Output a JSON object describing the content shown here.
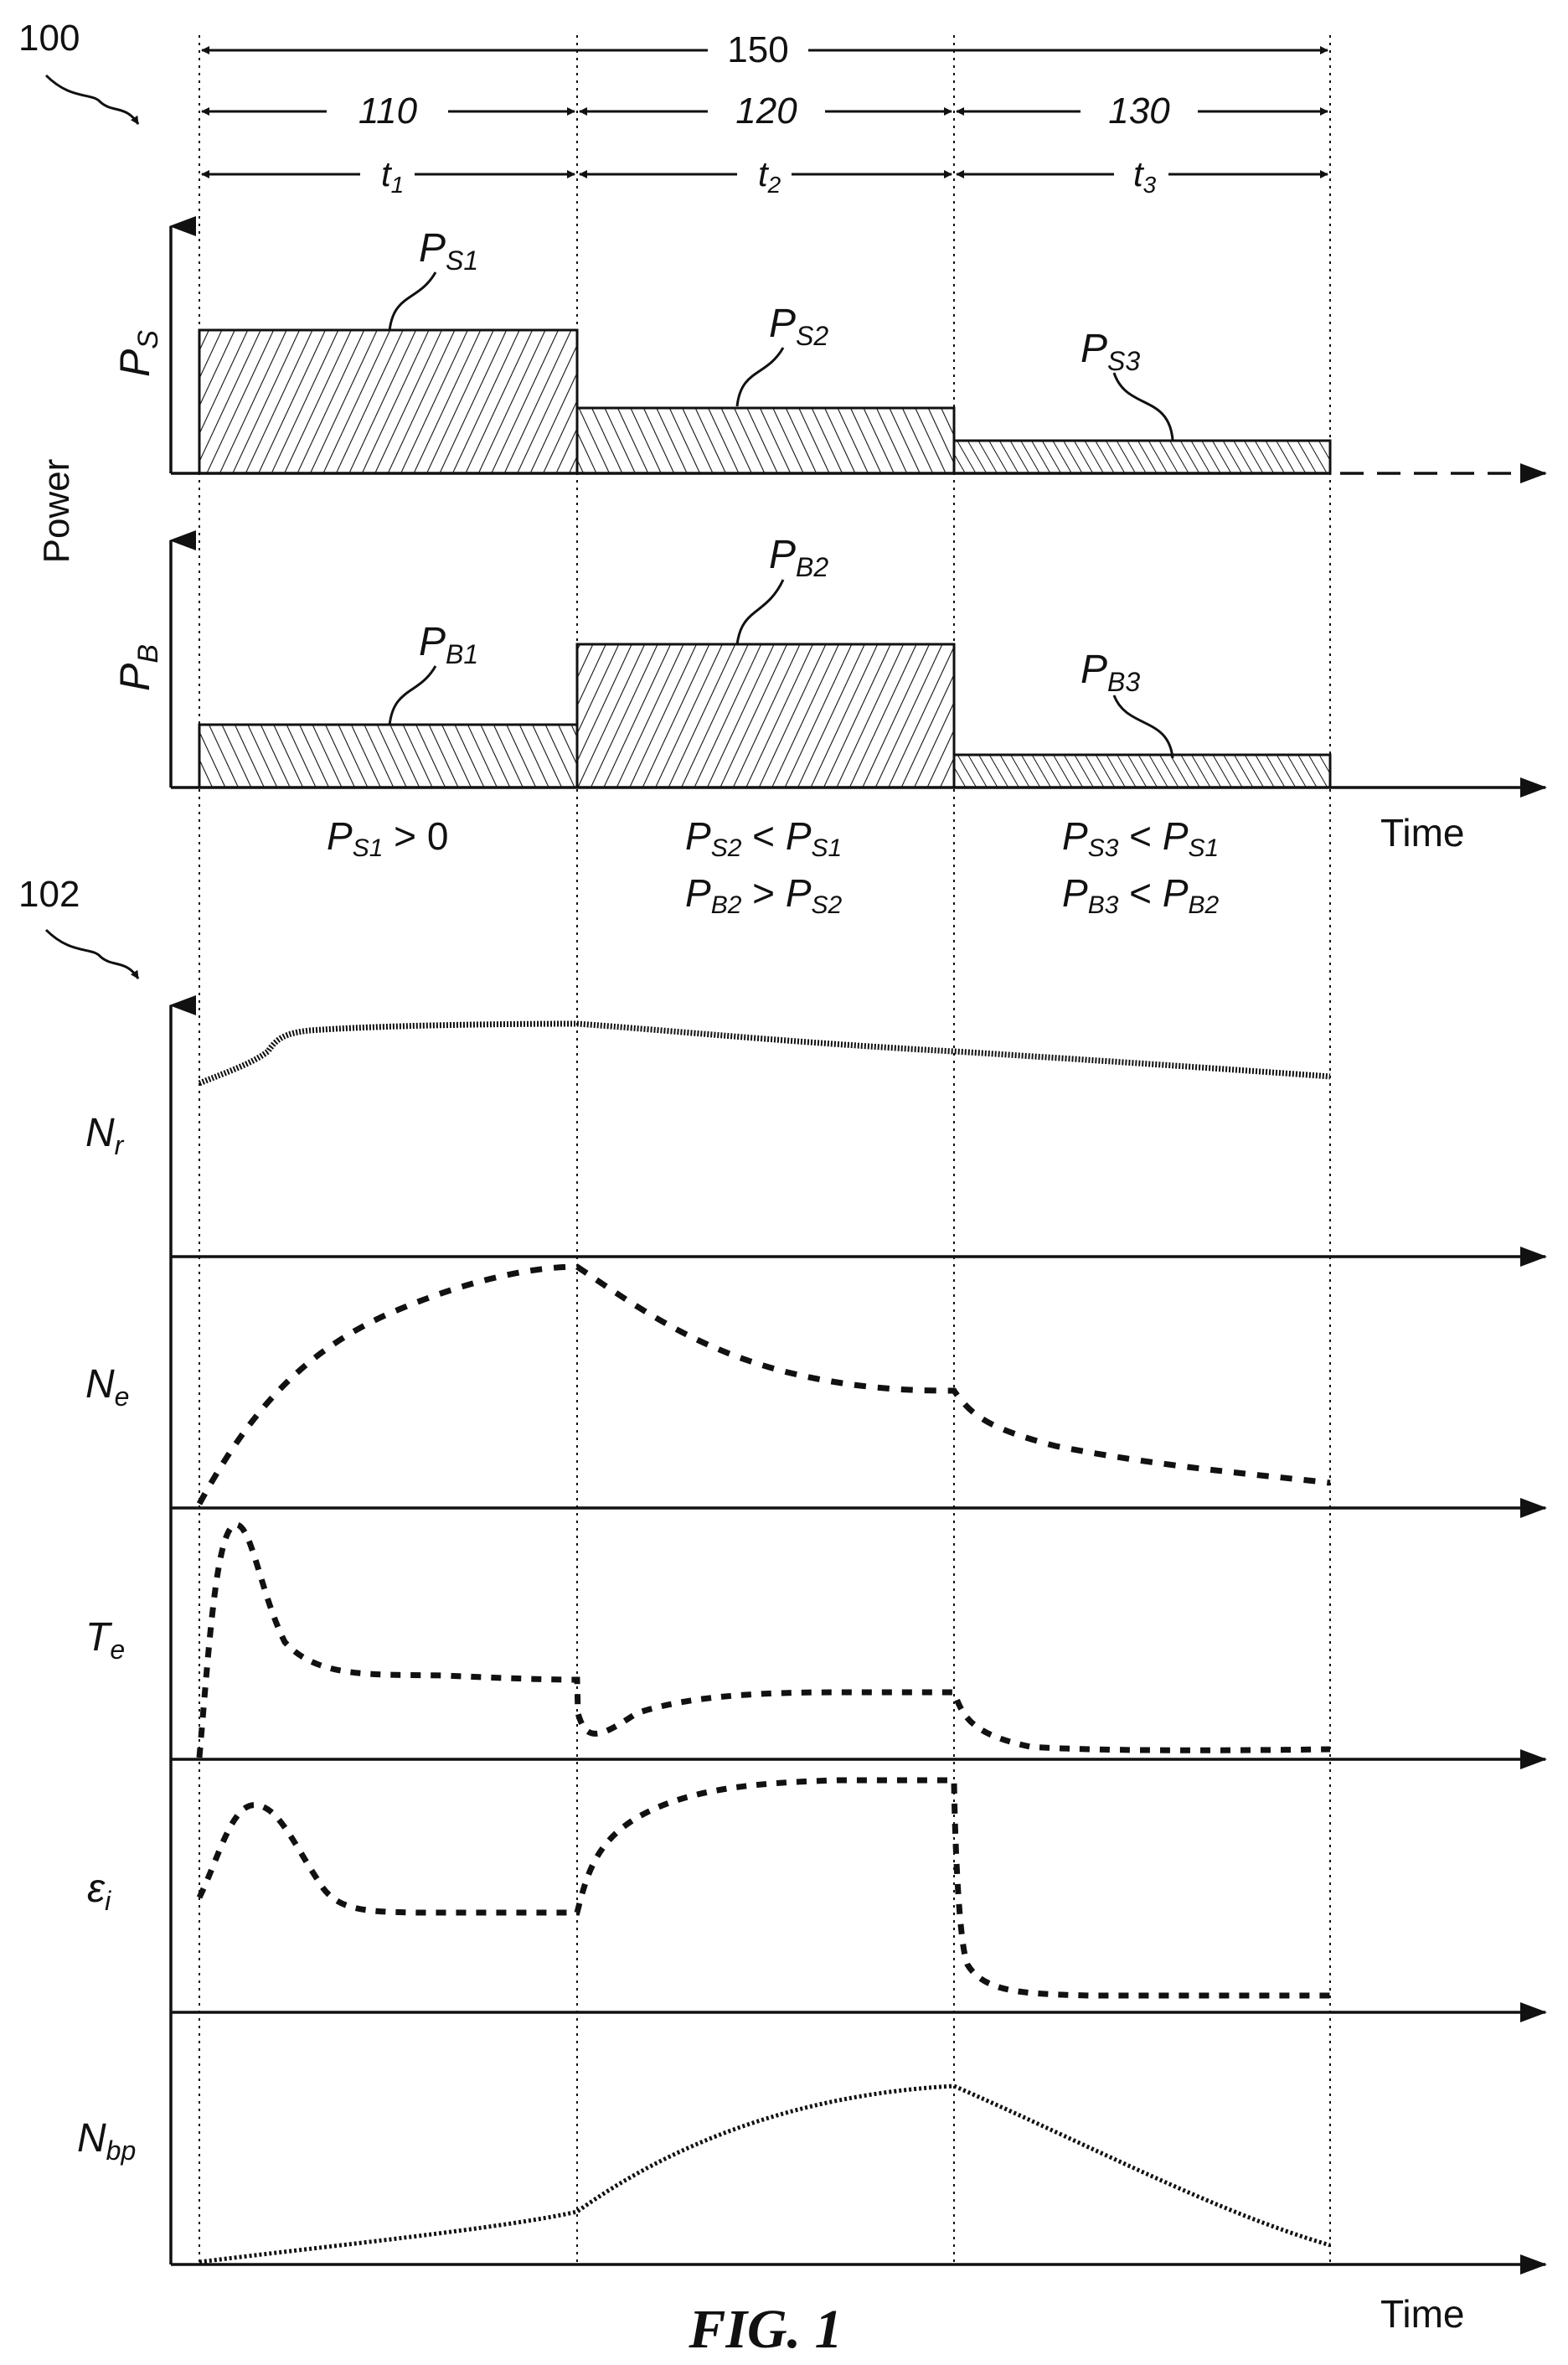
{
  "figure_label": "FIG. 1",
  "ref_top": "100",
  "ref_bottom": "102",
  "durations": {
    "total": "150",
    "seg1": "110",
    "seg2": "120",
    "seg3": "130",
    "t1": "t",
    "t1_sub": "1",
    "t2": "t",
    "t2_sub": "2",
    "t3": "t",
    "t3_sub": "3"
  },
  "power_axis_label": "Power",
  "time_label_top": "Time",
  "time_label_bottom": "Time",
  "ps_axis": {
    "main": "P",
    "sub": "S"
  },
  "pb_axis": {
    "main": "P",
    "sub": "B"
  },
  "ps_labels": [
    {
      "main": "P",
      "sub": "S1"
    },
    {
      "main": "P",
      "sub": "S2"
    },
    {
      "main": "P",
      "sub": "S3"
    }
  ],
  "pb_labels": [
    {
      "main": "P",
      "sub": "B1"
    },
    {
      "main": "P",
      "sub": "B2"
    },
    {
      "main": "P",
      "sub": "B3"
    }
  ],
  "ps_levels": [
    0.57,
    0.26,
    0.13
  ],
  "pb_levels": [
    0.25,
    0.57,
    0.13
  ],
  "conditions": {
    "c1": {
      "a_main": "P",
      "a_sub": "S1",
      "a_rest": " > 0"
    },
    "c2_line1": {
      "a_main": "P",
      "a_sub": "S2",
      "op": " < ",
      "b_main": "P",
      "b_sub": "S1"
    },
    "c2_line2": {
      "a_main": "P",
      "a_sub": "B2",
      "op": " > ",
      "b_main": "P",
      "b_sub": "S2"
    },
    "c3_line1": {
      "a_main": "P",
      "a_sub": "S3",
      "op": " < ",
      "b_main": "P",
      "b_sub": "S1"
    },
    "c3_line2": {
      "a_main": "P",
      "a_sub": "B3",
      "op": " < ",
      "b_main": "P",
      "b_sub": "B2"
    }
  },
  "traces": [
    {
      "main": "N",
      "sub": "r"
    },
    {
      "main": "N",
      "sub": "e"
    },
    {
      "main": "T",
      "sub": "e"
    },
    {
      "main": "ε",
      "sub": "i"
    },
    {
      "main": "N",
      "sub": "bp"
    }
  ]
}
